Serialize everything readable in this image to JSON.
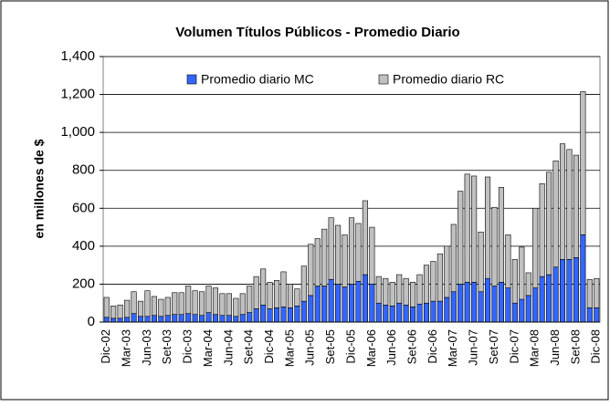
{
  "chart_data": {
    "type": "stacked_bar",
    "title": "Volumen Títulos Públicos - Promedio Diario",
    "y_label": "en millones de $",
    "categories": [
      "Dic-02",
      null,
      null,
      "Mar-03",
      null,
      null,
      "Jun-03",
      null,
      null,
      "Set-03",
      null,
      null,
      "Dic-03",
      null,
      null,
      "Mar-04",
      null,
      null,
      "Jun-04",
      null,
      null,
      "Set-04",
      null,
      null,
      "Dic-04",
      null,
      null,
      "Mar-05",
      null,
      null,
      "Jun-05",
      null,
      null,
      "Set-05",
      null,
      null,
      "Dic-05",
      null,
      null,
      "Mar-06",
      null,
      null,
      "Jun-06",
      null,
      null,
      "Set-06",
      null,
      null,
      "Dic-06",
      null,
      null,
      "Mar-07",
      null,
      null,
      "Jun-07",
      null,
      null,
      "Set-07",
      null,
      null,
      "Dic-07",
      null,
      null,
      "Mar-08",
      null,
      null,
      "Jun-08",
      null,
      null,
      "Set-08",
      null,
      null,
      "Dic-08"
    ],
    "series": [
      {
        "name": "Promedio diario MC",
        "color": "#3366ff",
        "values": [
          25,
          20,
          20,
          25,
          45,
          30,
          30,
          35,
          30,
          35,
          40,
          40,
          45,
          40,
          35,
          50,
          40,
          35,
          35,
          30,
          40,
          50,
          70,
          90,
          70,
          75,
          80,
          75,
          85,
          110,
          140,
          190,
          190,
          225,
          200,
          185,
          200,
          215,
          250,
          200,
          100,
          90,
          85,
          100,
          90,
          80,
          95,
          100,
          110,
          110,
          130,
          160,
          200,
          210,
          210,
          160,
          230,
          190,
          210,
          180,
          100,
          120,
          140,
          180,
          240,
          250,
          290,
          330,
          330,
          340,
          460,
          75,
          75
        ]
      },
      {
        "name": "Promedio diario RC",
        "color": "#c0c0c0",
        "values": [
          105,
          65,
          70,
          90,
          115,
          80,
          135,
          100,
          90,
          95,
          115,
          115,
          145,
          125,
          125,
          140,
          140,
          115,
          115,
          95,
          110,
          140,
          170,
          190,
          140,
          145,
          185,
          125,
          90,
          185,
          270,
          250,
          300,
          325,
          310,
          275,
          350,
          305,
          390,
          300,
          140,
          140,
          125,
          150,
          140,
          130,
          155,
          200,
          210,
          250,
          270,
          355,
          490,
          570,
          560,
          315,
          535,
          415,
          500,
          280,
          230,
          275,
          120,
          420,
          490,
          540,
          560,
          610,
          580,
          540,
          755,
          150,
          155
        ]
      }
    ],
    "ylim": [
      0,
      1400
    ],
    "yticks": [
      0,
      200,
      400,
      600,
      800,
      {
        "value": 1000,
        "label": "1,000"
      },
      {
        "value": 1200,
        "label": "1,200"
      },
      {
        "value": 1400,
        "label": "1,400"
      }
    ],
    "grid": true,
    "legend": "top"
  }
}
